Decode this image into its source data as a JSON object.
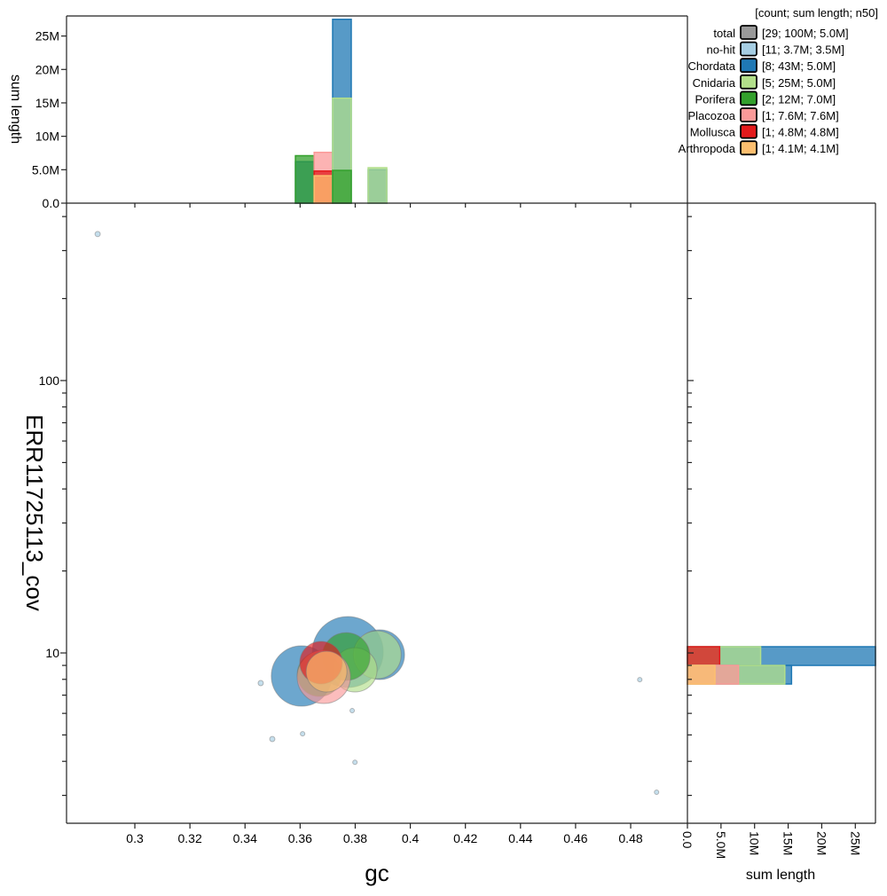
{
  "chart_data": {
    "type": "scatter",
    "xlabel": "gc",
    "ylabel": "ERR11725113_cov",
    "xlim": [
      0.2752,
      0.5006
    ],
    "ylim": [
      2.37,
      448
    ],
    "yscale": "log",
    "x_ticks": [
      "0.3",
      "0.32",
      "0.34",
      "0.36",
      "0.38",
      "0.4",
      "0.42",
      "0.44",
      "0.46",
      "0.48"
    ],
    "x_tick_values": [
      0.3,
      0.32,
      0.34,
      0.36,
      0.38,
      0.4,
      0.42,
      0.44,
      0.46,
      0.48
    ],
    "y_ticks": [
      "10",
      "100"
    ],
    "y_tick_values": [
      10,
      100
    ],
    "top_hist": {
      "ylabel": "sum length",
      "ylim_M": [
        0,
        28
      ],
      "ticks": [
        "0.0",
        "5.0M",
        "10M",
        "15M",
        "20M",
        "25M"
      ],
      "tick_values_M": [
        0,
        5,
        10,
        15,
        20,
        25
      ],
      "bin_width_gc": 0.00676,
      "bars": [
        {
          "taxon": "Chordata",
          "gc": 0.3583,
          "value_M": 6.2
        },
        {
          "taxon": "Porifera",
          "gc": 0.3583,
          "value_M": 7.1
        },
        {
          "taxon": "Placozoa",
          "gc": 0.3651,
          "value_M": 7.6
        },
        {
          "taxon": "Mollusca",
          "gc": 0.3651,
          "value_M": 4.8
        },
        {
          "taxon": "Arthropoda",
          "gc": 0.3651,
          "value_M": 4.1
        },
        {
          "taxon": "Chordata",
          "gc": 0.3718,
          "value_M": 27.5
        },
        {
          "taxon": "Cnidaria",
          "gc": 0.3718,
          "value_M": 15.7
        },
        {
          "taxon": "Porifera",
          "gc": 0.3718,
          "value_M": 4.9
        },
        {
          "taxon": "Chordata",
          "gc": 0.3847,
          "value_M": 5.0
        },
        {
          "taxon": "Cnidaria",
          "gc": 0.3847,
          "value_M": 5.3
        }
      ]
    },
    "right_hist": {
      "xlabel": "sum length",
      "xlim_M": [
        0,
        28
      ],
      "ticks": [
        "0.0",
        "5.0M",
        "10M",
        "15M",
        "20M",
        "25M"
      ],
      "tick_values_M": [
        0,
        5,
        10,
        15,
        20,
        25
      ],
      "bars": [
        {
          "taxon": "Chordata",
          "cov_lo": 9.0,
          "cov_hi": 10.54,
          "value_M": 28
        },
        {
          "taxon": "Cnidaria",
          "cov_lo": 9.0,
          "cov_hi": 10.54,
          "value_M": 10.9
        },
        {
          "taxon": "Mollusca",
          "cov_lo": 9.0,
          "cov_hi": 10.54,
          "value_M": 4.8
        },
        {
          "taxon": "Chordata",
          "cov_lo": 7.69,
          "cov_hi": 9.0,
          "value_M": 15.5
        },
        {
          "taxon": "Cnidaria",
          "cov_lo": 7.69,
          "cov_hi": 9.0,
          "value_M": 14.5
        },
        {
          "taxon": "Placozoa",
          "cov_lo": 7.69,
          "cov_hi": 9.0,
          "value_M": 7.6
        },
        {
          "taxon": "Arthropoda",
          "cov_lo": 7.69,
          "cov_hi": 9.0,
          "value_M": 4.1
        }
      ]
    },
    "points": [
      {
        "taxon": "Chordata",
        "gc": 0.3605,
        "cov": 8.23,
        "length_M": 14.5
      },
      {
        "taxon": "Chordata",
        "gc": 0.3773,
        "cov": 10.08,
        "length_M": 20
      },
      {
        "taxon": "Chordata",
        "gc": 0.3889,
        "cov": 9.85,
        "length_M": 9.8
      },
      {
        "taxon": "Cnidaria",
        "gc": 0.388,
        "cov": 9.85,
        "length_M": 9.1
      },
      {
        "taxon": "Cnidaria",
        "gc": 0.3799,
        "cov": 8.67,
        "length_M": 7.8
      },
      {
        "taxon": "Porifera",
        "gc": 0.3767,
        "cov": 9.7,
        "length_M": 9.1
      },
      {
        "taxon": "Porifera",
        "gc": 0.367,
        "cov": 8.35,
        "length_M": 7.8
      },
      {
        "taxon": "Placozoa",
        "gc": 0.3686,
        "cov": 8.17,
        "length_M": 11.3
      },
      {
        "taxon": "Mollusca",
        "gc": 0.3676,
        "cov": 9.21,
        "length_M": 7.2
      },
      {
        "taxon": "Arthropoda",
        "gc": 0.3696,
        "cov": 8.54,
        "length_M": 6.6
      },
      {
        "taxon": "no-hit",
        "gc": 0.2865,
        "cov": 345,
        "length_M": 0.11
      },
      {
        "taxon": "no-hit",
        "gc": 0.3457,
        "cov": 7.75,
        "length_M": 0.11
      },
      {
        "taxon": "no-hit",
        "gc": 0.3499,
        "cov": 4.83,
        "length_M": 0.11
      },
      {
        "taxon": "no-hit",
        "gc": 0.3609,
        "cov": 5.05,
        "length_M": 0.08
      },
      {
        "taxon": "no-hit",
        "gc": 0.3789,
        "cov": 6.14,
        "length_M": 0.06
      },
      {
        "taxon": "no-hit",
        "gc": 0.3799,
        "cov": 3.97,
        "length_M": 0.06
      },
      {
        "taxon": "no-hit",
        "gc": 0.4833,
        "cov": 7.98,
        "length_M": 0.04
      },
      {
        "taxon": "no-hit",
        "gc": 0.4894,
        "cov": 3.08,
        "length_M": 0.06
      }
    ],
    "legend": {
      "header": "[count; sum length; n50]",
      "placement": "top-right",
      "entries": [
        {
          "name": "total",
          "stats": "[29; 100M; 5.0M]",
          "color": "#999999"
        },
        {
          "name": "no-hit",
          "stats": "[11; 3.7M; 3.5M]",
          "color": "#a6cee3"
        },
        {
          "name": "Chordata",
          "stats": "[8; 43M; 5.0M]",
          "color": "#1f78b4"
        },
        {
          "name": "Cnidaria",
          "stats": "[5; 25M; 5.0M]",
          "color": "#b2df8a"
        },
        {
          "name": "Porifera",
          "stats": "[2; 12M; 7.0M]",
          "color": "#33a02c"
        },
        {
          "name": "Placozoa",
          "stats": "[1; 7.6M; 7.6M]",
          "color": "#fb9a99"
        },
        {
          "name": "Mollusca",
          "stats": "[1; 4.8M; 4.8M]",
          "color": "#e31a1c"
        },
        {
          "name": "Arthropoda",
          "stats": "[1; 4.1M; 4.1M]",
          "color": "#fdbf6f"
        }
      ]
    }
  }
}
